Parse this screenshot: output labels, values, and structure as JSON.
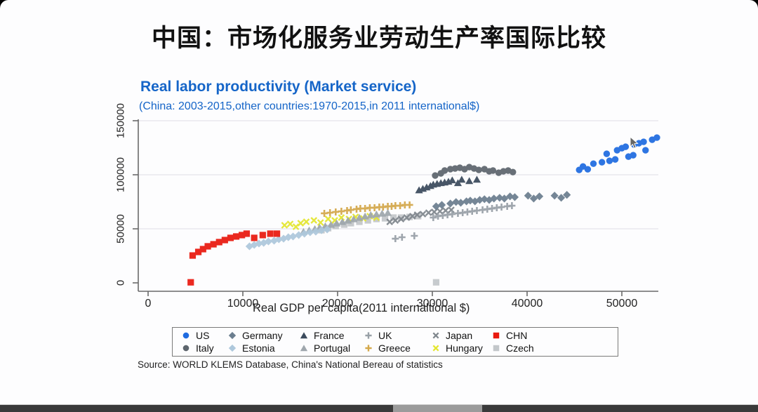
{
  "page": {
    "title": "中国：市场化服务业劳动生产率国际比较"
  },
  "source_note": "Source: WORLD KLEMS Database, China's National Bereau of statistics",
  "colors": {
    "title_blue": "#1565c8",
    "axis_gray": "#6a6a6a",
    "grid_gray": "#e6e4ec"
  },
  "chart_data": {
    "type": "scatter",
    "title": "Real labor productivity (Market service)",
    "subtitle": "(China: 2003-2015,other countries:1970-2015,in 2011 international$)",
    "xlabel": "Real GDP per capita(2011 internaltional $)",
    "ylabel": "",
    "xlim": [
      0,
      53800
    ],
    "ylim": [
      0,
      157000
    ],
    "xticks": [
      0,
      10000,
      20000,
      30000,
      40000,
      50000
    ],
    "yticks": [
      0,
      50000,
      100000,
      150000
    ],
    "grid": "horizontal-faint",
    "legend_position": "bottom-box-2rows",
    "series": [
      {
        "name": "US",
        "marker": "circle",
        "color": "#1f6be0",
        "points": [
          [
            45500,
            104500
          ],
          [
            45900,
            107700
          ],
          [
            46400,
            105100
          ],
          [
            47000,
            110300
          ],
          [
            47900,
            111600
          ],
          [
            48400,
            119400
          ],
          [
            48700,
            112900
          ],
          [
            49300,
            114200
          ],
          [
            49500,
            122700
          ],
          [
            50000,
            124600
          ],
          [
            50400,
            125900
          ],
          [
            50700,
            116800
          ],
          [
            51200,
            118100
          ],
          [
            51300,
            127900
          ],
          [
            51800,
            129200
          ],
          [
            52300,
            130500
          ],
          [
            52500,
            122700
          ],
          [
            53200,
            132400
          ],
          [
            53700,
            134400
          ]
        ]
      },
      {
        "name": "Germany",
        "marker": "diamond",
        "color": "#6b7e8f",
        "points": [
          [
            30400,
            70800
          ],
          [
            31000,
            72100
          ],
          [
            31900,
            73400
          ],
          [
            32500,
            74800
          ],
          [
            33000,
            74100
          ],
          [
            33600,
            75400
          ],
          [
            34000,
            76100
          ],
          [
            34500,
            75400
          ],
          [
            35000,
            76700
          ],
          [
            35500,
            77400
          ],
          [
            36000,
            76700
          ],
          [
            36500,
            78000
          ],
          [
            37100,
            78700
          ],
          [
            37600,
            78000
          ],
          [
            38200,
            80000
          ],
          [
            38700,
            79300
          ],
          [
            40100,
            80700
          ],
          [
            40700,
            78000
          ],
          [
            41300,
            80000
          ],
          [
            42900,
            80700
          ],
          [
            43600,
            78700
          ],
          [
            44200,
            81400
          ]
        ]
      },
      {
        "name": "France",
        "marker": "triangle",
        "color": "#3b4a5c",
        "points": [
          [
            28600,
            85900
          ],
          [
            29000,
            87200
          ],
          [
            29400,
            88500
          ],
          [
            29800,
            89800
          ],
          [
            30100,
            91100
          ],
          [
            30500,
            91800
          ],
          [
            30900,
            92500
          ],
          [
            31300,
            93100
          ],
          [
            31700,
            93800
          ],
          [
            32100,
            95100
          ],
          [
            32700,
            92500
          ],
          [
            33100,
            95700
          ],
          [
            33900,
            94400
          ],
          [
            34700,
            95700
          ]
        ]
      },
      {
        "name": "UK",
        "marker": "plus",
        "color": "#98a0a7",
        "points": [
          [
            26100,
            40900
          ],
          [
            26800,
            42200
          ],
          [
            28100,
            43500
          ],
          [
            30100,
            60400
          ],
          [
            30600,
            61700
          ],
          [
            31100,
            62300
          ],
          [
            31600,
            63000
          ],
          [
            32100,
            63600
          ],
          [
            32700,
            64300
          ],
          [
            33200,
            64900
          ],
          [
            33700,
            65600
          ],
          [
            34200,
            66200
          ],
          [
            34700,
            66900
          ],
          [
            35300,
            67500
          ],
          [
            35800,
            68200
          ],
          [
            36300,
            68800
          ],
          [
            36800,
            69500
          ],
          [
            37300,
            70100
          ],
          [
            37900,
            70800
          ],
          [
            38400,
            71400
          ]
        ]
      },
      {
        "name": "Japan",
        "marker": "x",
        "color": "#7f868d",
        "points": [
          [
            25500,
            56400
          ],
          [
            26100,
            57700
          ],
          [
            26700,
            59000
          ],
          [
            27300,
            60400
          ],
          [
            27900,
            61700
          ],
          [
            28400,
            63000
          ],
          [
            29000,
            63600
          ],
          [
            29600,
            64900
          ],
          [
            30200,
            65600
          ],
          [
            30800,
            66200
          ],
          [
            31400,
            66900
          ],
          [
            32000,
            67500
          ]
        ]
      },
      {
        "name": "CHN",
        "marker": "square",
        "color": "#e9190f",
        "points": [
          [
            4500,
            500
          ],
          [
            4700,
            25300
          ],
          [
            5300,
            28600
          ],
          [
            5800,
            31200
          ],
          [
            6300,
            33800
          ],
          [
            6900,
            35700
          ],
          [
            7500,
            37700
          ],
          [
            8100,
            39600
          ],
          [
            8700,
            41600
          ],
          [
            9300,
            42900
          ],
          [
            9900,
            44200
          ],
          [
            10400,
            45500
          ],
          [
            11200,
            41600
          ],
          [
            12100,
            44200
          ],
          [
            12900,
            45500
          ],
          [
            13600,
            45500
          ]
        ]
      },
      {
        "name": "Italy",
        "marker": "circle",
        "color": "#5d656d",
        "points": [
          [
            30300,
            99300
          ],
          [
            30900,
            101300
          ],
          [
            31300,
            103900
          ],
          [
            31900,
            105200
          ],
          [
            32400,
            105800
          ],
          [
            32900,
            106500
          ],
          [
            33400,
            105200
          ],
          [
            33900,
            107100
          ],
          [
            34400,
            105800
          ],
          [
            34900,
            104500
          ],
          [
            35500,
            105200
          ],
          [
            36000,
            103200
          ],
          [
            36400,
            103900
          ],
          [
            37000,
            101900
          ],
          [
            37500,
            103200
          ],
          [
            38000,
            103900
          ],
          [
            38500,
            102500
          ]
        ]
      },
      {
        "name": "Estonia",
        "marker": "diamond",
        "color": "#aec8dc",
        "points": [
          [
            10700,
            33800
          ],
          [
            11200,
            35100
          ],
          [
            11700,
            36400
          ],
          [
            12200,
            37000
          ],
          [
            12700,
            38300
          ],
          [
            13300,
            39000
          ],
          [
            13800,
            40300
          ],
          [
            14300,
            40900
          ],
          [
            14800,
            42200
          ],
          [
            15300,
            42900
          ],
          [
            15900,
            44200
          ],
          [
            16500,
            45500
          ],
          [
            17100,
            46800
          ],
          [
            17700,
            47400
          ],
          [
            18300,
            48700
          ],
          [
            18900,
            49400
          ]
        ]
      },
      {
        "name": "Portugal",
        "marker": "triangle",
        "color": "#9fa7ad",
        "points": [
          [
            16400,
            47400
          ],
          [
            17000,
            48700
          ],
          [
            17600,
            50000
          ],
          [
            18100,
            51300
          ],
          [
            18700,
            52600
          ],
          [
            19300,
            53900
          ],
          [
            19900,
            55200
          ],
          [
            20500,
            56500
          ],
          [
            21100,
            57800
          ],
          [
            21700,
            59100
          ],
          [
            22300,
            60400
          ],
          [
            22900,
            61700
          ],
          [
            23500,
            63000
          ],
          [
            24100,
            63600
          ],
          [
            24700,
            64300
          ],
          [
            25300,
            64900
          ]
        ]
      },
      {
        "name": "Greece",
        "marker": "plus",
        "color": "#d4a84b",
        "points": [
          [
            18600,
            64300
          ],
          [
            19200,
            64900
          ],
          [
            19800,
            65600
          ],
          [
            20400,
            66200
          ],
          [
            21000,
            66900
          ],
          [
            21400,
            67500
          ],
          [
            22000,
            68200
          ],
          [
            22400,
            68800
          ],
          [
            22900,
            68800
          ],
          [
            23400,
            69500
          ],
          [
            23900,
            69500
          ],
          [
            24400,
            70100
          ],
          [
            24800,
            70100
          ],
          [
            25300,
            70800
          ],
          [
            25700,
            70800
          ],
          [
            26100,
            71400
          ],
          [
            26600,
            71400
          ],
          [
            27100,
            72100
          ],
          [
            27600,
            72100
          ]
        ]
      },
      {
        "name": "Hungary",
        "marker": "x",
        "color": "#e4e62f",
        "points": [
          [
            14400,
            53300
          ],
          [
            15000,
            54500
          ],
          [
            15600,
            51900
          ],
          [
            16100,
            55200
          ],
          [
            16700,
            56500
          ],
          [
            17500,
            57800
          ],
          [
            18200,
            55800
          ],
          [
            19000,
            59100
          ],
          [
            19700,
            57800
          ],
          [
            20400,
            60400
          ],
          [
            21200,
            59100
          ],
          [
            21900,
            61000
          ],
          [
            22700,
            59700
          ],
          [
            23400,
            61700
          ],
          [
            24100,
            60400
          ]
        ]
      },
      {
        "name": "Czech",
        "marker": "square",
        "color": "#c3c7ca",
        "points": [
          [
            18300,
            48700
          ],
          [
            19000,
            50600
          ],
          [
            19800,
            52600
          ],
          [
            20700,
            53900
          ],
          [
            21400,
            55200
          ],
          [
            22300,
            56500
          ],
          [
            23200,
            57800
          ],
          [
            24100,
            59100
          ],
          [
            25000,
            59700
          ],
          [
            25900,
            60400
          ],
          [
            26700,
            60400
          ],
          [
            27600,
            61000
          ],
          [
            28500,
            61700
          ],
          [
            30400,
            500
          ]
        ]
      }
    ]
  }
}
